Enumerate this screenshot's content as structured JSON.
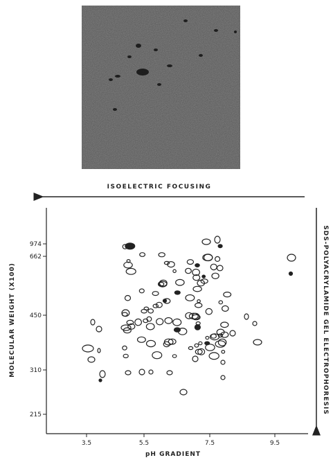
{
  "figure": {
    "gel_label": "ISOELECTRIC FOCUSING",
    "y_axis_label": "MOLECULAR WEIGHT (X100)",
    "x_axis_label": "pH GRADIENT",
    "right_label": "SDS-POLYACRYLAMIDE GEL ELECTROPHORESIS",
    "y_ticks": [
      "974",
      "662",
      "450",
      "310",
      "215"
    ],
    "x_ticks": [
      "3.5",
      "5.5",
      "7.5",
      "9.5"
    ]
  }
}
